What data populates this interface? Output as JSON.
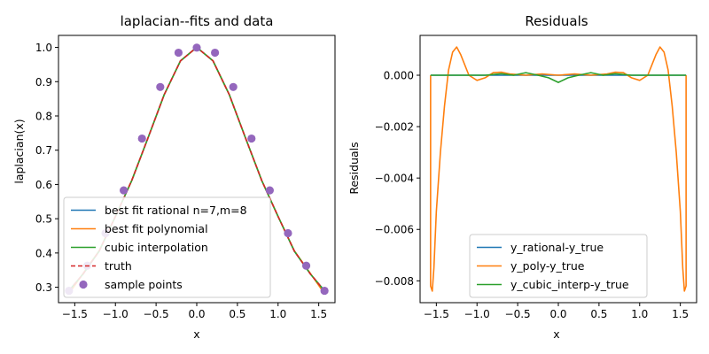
{
  "chart_data": [
    {
      "type": "line",
      "title": "laplacian--fits and data",
      "xlabel": "x",
      "ylabel": "laplacian(x)",
      "xlim": [
        -1.7,
        1.7
      ],
      "ylim": [
        0.255,
        1.035
      ],
      "xticks": [
        -1.5,
        -1.0,
        -0.5,
        0.0,
        0.5,
        1.0,
        1.5
      ],
      "xtick_labels": [
        "−1.5",
        "−1.0",
        "−0.5",
        "0.0",
        "0.5",
        "1.0",
        "1.5"
      ],
      "yticks": [
        0.3,
        0.4,
        0.5,
        0.6,
        0.7,
        0.8,
        0.9,
        1.0
      ],
      "ytick_labels": [
        "0.3",
        "0.4",
        "0.5",
        "0.6",
        "0.7",
        "0.8",
        "0.9",
        "1.0"
      ],
      "legend_position": "lower-left",
      "series": [
        {
          "name": "best fit rational n=7,m=8",
          "color": "#1f77b4",
          "style": "solid",
          "x": [
            -1.5708,
            -1.4,
            -1.2,
            -1.0,
            -0.8,
            -0.6,
            -0.4,
            -0.2,
            0.0,
            0.2,
            0.4,
            0.6,
            0.8,
            1.0,
            1.2,
            1.4,
            1.5708
          ],
          "y": [
            0.2897,
            0.338,
            0.4055,
            0.5067,
            0.611,
            0.7354,
            0.8621,
            0.9608,
            1.0,
            0.9608,
            0.8621,
            0.7354,
            0.611,
            0.5067,
            0.4055,
            0.338,
            0.2897
          ]
        },
        {
          "name": "best fit polynomial",
          "color": "#ff7f0e",
          "style": "solid",
          "x": [
            -1.5708,
            -1.4,
            -1.2,
            -1.0,
            -0.8,
            -0.6,
            -0.4,
            -0.2,
            0.0,
            0.2,
            0.4,
            0.6,
            0.8,
            1.0,
            1.2,
            1.4,
            1.5708
          ],
          "y": [
            0.2815,
            0.3395,
            0.4065,
            0.5065,
            0.6112,
            0.7354,
            0.8621,
            0.9608,
            1.0,
            0.9608,
            0.8621,
            0.7354,
            0.6112,
            0.5065,
            0.4065,
            0.3395,
            0.2815
          ]
        },
        {
          "name": "cubic interpolation",
          "color": "#2ca02c",
          "style": "solid",
          "x": [
            -1.5708,
            -1.4,
            -1.2,
            -1.0,
            -0.8,
            -0.6,
            -0.4,
            -0.2,
            0.0,
            0.2,
            0.4,
            0.6,
            0.8,
            1.0,
            1.2,
            1.4,
            1.5708
          ],
          "y": [
            0.2897,
            0.338,
            0.4055,
            0.5067,
            0.611,
            0.7354,
            0.8621,
            0.9608,
            1.0,
            0.9608,
            0.8621,
            0.7354,
            0.611,
            0.5067,
            0.4055,
            0.338,
            0.2897
          ]
        },
        {
          "name": "truth",
          "color": "#d62728",
          "style": "dashed",
          "x": [
            -1.5708,
            -1.4,
            -1.2,
            -1.0,
            -0.8,
            -0.6,
            -0.4,
            -0.2,
            0.0,
            0.2,
            0.4,
            0.6,
            0.8,
            1.0,
            1.2,
            1.4,
            1.5708
          ],
          "y": [
            0.2897,
            0.338,
            0.4055,
            0.5067,
            0.611,
            0.7354,
            0.8621,
            0.9608,
            1.0,
            0.9608,
            0.8621,
            0.7354,
            0.611,
            0.5067,
            0.4055,
            0.338,
            0.2897
          ]
        }
      ],
      "points": {
        "name": "sample points",
        "color": "#9467bd",
        "x": [
          -1.5708,
          -1.3464,
          -1.122,
          -0.8976,
          -0.6732,
          -0.4488,
          -0.2244,
          0.0,
          0.2244,
          0.4488,
          0.6732,
          0.8976,
          1.122,
          1.3464,
          1.5708
        ],
        "y": [
          0.2897,
          0.3628,
          0.4577,
          0.5828,
          0.734,
          0.8844,
          0.9845,
          0.9993,
          0.9845,
          0.8844,
          0.734,
          0.5828,
          0.4577,
          0.3628,
          0.2897
        ]
      }
    },
    {
      "type": "line",
      "title": "Residuals",
      "xlabel": "x",
      "ylabel": "Residuals",
      "xlim": [
        -1.7,
        1.7
      ],
      "ylim": [
        -0.00885,
        0.00155
      ],
      "xticks": [
        -1.5,
        -1.0,
        -0.5,
        0.0,
        0.5,
        1.0,
        1.5
      ],
      "xtick_labels": [
        "−1.5",
        "−1.0",
        "−0.5",
        "0.0",
        "0.5",
        "1.0",
        "1.5"
      ],
      "yticks": [
        -0.008,
        -0.006,
        -0.004,
        -0.002,
        0.0
      ],
      "ytick_labels": [
        "−0.008",
        "−0.006",
        "−0.004",
        "−0.002",
        "0.000"
      ],
      "legend_position": "lower-center",
      "series": [
        {
          "name": "y_rational-y_true",
          "color": "#1f77b4",
          "x": [
            -1.5708,
            0.0,
            1.5708
          ],
          "y": [
            0.0,
            0.0,
            0.0
          ]
        },
        {
          "name": "y_poly-y_true",
          "color": "#ff7f0e",
          "x": [
            -1.5708,
            -1.5708,
            -1.55,
            -1.53,
            -1.5,
            -1.45,
            -1.4,
            -1.35,
            -1.3,
            -1.25,
            -1.2,
            -1.1,
            -1.0,
            -0.9,
            -0.8,
            -0.7,
            -0.6,
            -0.4,
            -0.2,
            0.0,
            0.2,
            0.4,
            0.6,
            0.7,
            0.8,
            0.9,
            1.0,
            1.1,
            1.2,
            1.25,
            1.3,
            1.35,
            1.4,
            1.45,
            1.5,
            1.53,
            1.55,
            1.5708,
            1.5708
          ],
          "y": [
            0.0,
            -0.0082,
            -0.0084,
            -0.0075,
            -0.0053,
            -0.003,
            -0.0012,
            0.0002,
            0.0009,
            0.0011,
            0.0008,
            0.0,
            -0.0002,
            -0.0001,
            0.0001,
            0.00012,
            5e-05,
            0.0,
            5e-05,
            0.0,
            5e-05,
            0.0,
            5e-05,
            0.00012,
            0.0001,
            -0.0001,
            -0.0002,
            0.0,
            0.0008,
            0.0011,
            0.0009,
            0.0002,
            -0.0012,
            -0.003,
            -0.0053,
            -0.0075,
            -0.0084,
            -0.0082,
            0.0
          ]
        },
        {
          "name": "y_cubic_interp-y_true",
          "color": "#2ca02c",
          "x": [
            -1.5708,
            -1.2,
            -0.9,
            -0.7,
            -0.55,
            -0.4,
            -0.25,
            -0.12,
            0.0,
            0.12,
            0.25,
            0.4,
            0.55,
            0.7,
            0.9,
            1.2,
            1.5708
          ],
          "y": [
            0.0,
            0.0,
            0.0,
            6e-05,
            0.0,
            0.0001,
            0.0,
            -0.0001,
            -0.00028,
            -0.0001,
            0.0,
            0.0001,
            0.0,
            6e-05,
            0.0,
            0.0,
            0.0
          ]
        }
      ]
    }
  ]
}
